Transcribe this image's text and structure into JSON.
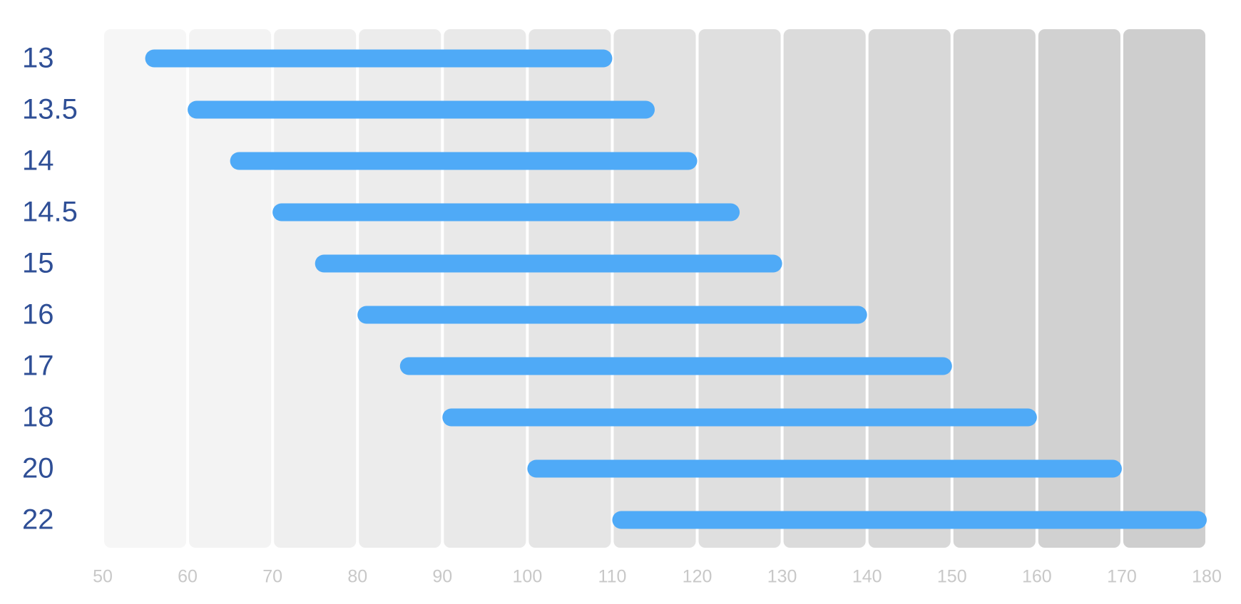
{
  "chart_data": {
    "type": "range-bar",
    "categories": [
      "13",
      "13.5",
      "14",
      "14.5",
      "15",
      "16",
      "17",
      "18",
      "20",
      "22"
    ],
    "low": [
      55,
      60,
      65,
      70,
      75,
      80,
      85,
      90,
      100,
      110
    ],
    "high": [
      110,
      115,
      120,
      125,
      130,
      140,
      150,
      160,
      170,
      180
    ],
    "color": "#4faaf7",
    "xlim": [
      50,
      180
    ],
    "xticks": [
      50,
      60,
      70,
      80,
      90,
      100,
      110,
      120,
      130,
      140,
      150,
      160,
      170,
      180
    ],
    "grid": true
  }
}
